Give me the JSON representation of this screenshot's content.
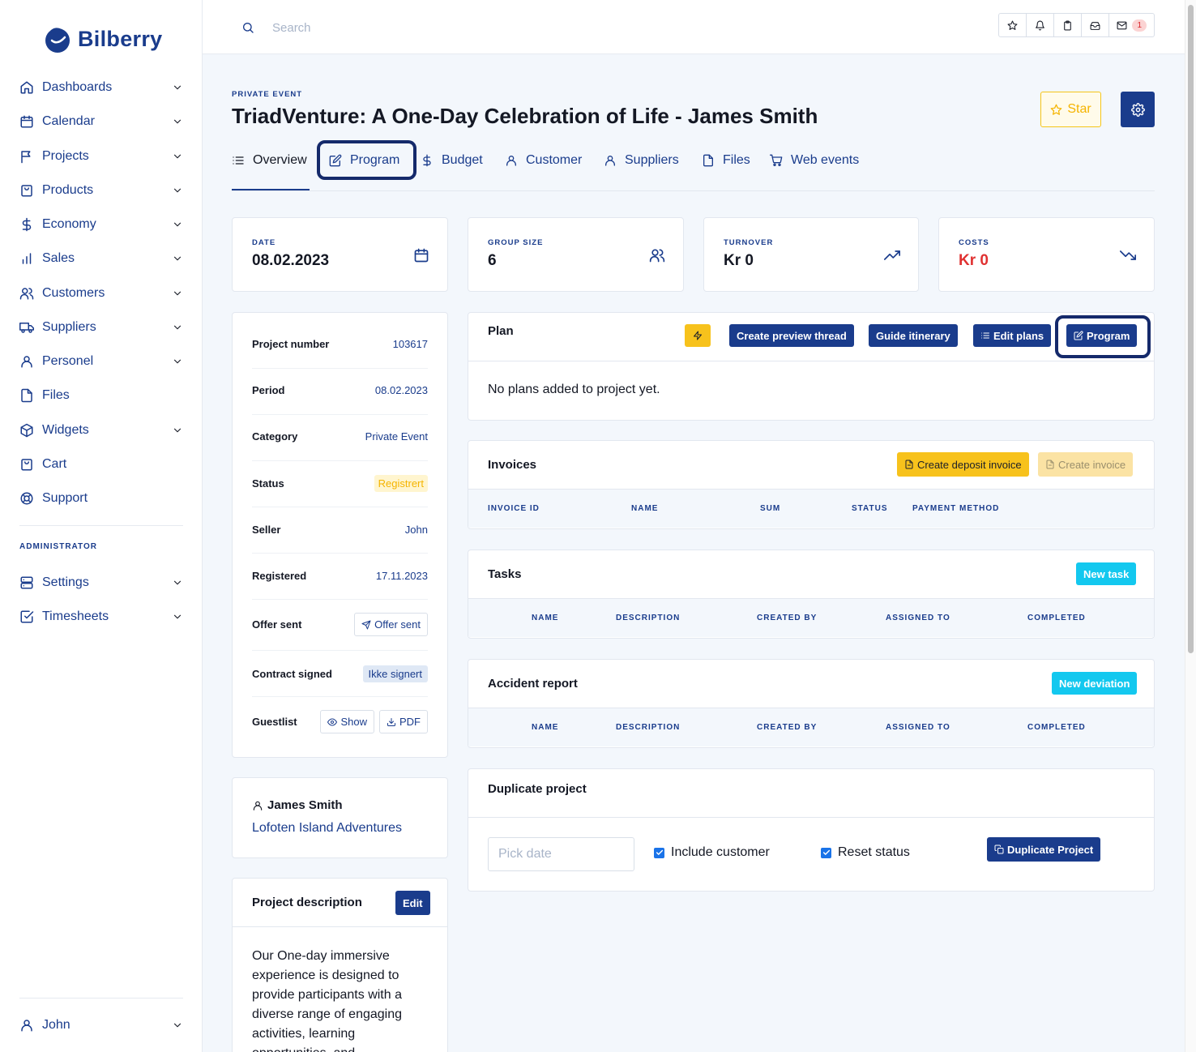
{
  "brand": {
    "name": "Bilberry"
  },
  "sidebar": {
    "items": [
      {
        "label": "Dashboards",
        "icon": "home-icon",
        "expandable": true
      },
      {
        "label": "Calendar",
        "icon": "calendar-icon",
        "expandable": true
      },
      {
        "label": "Projects",
        "icon": "flag-icon",
        "expandable": true
      },
      {
        "label": "Products",
        "icon": "shopping-bag-icon",
        "expandable": true
      },
      {
        "label": "Economy",
        "icon": "dollar-icon",
        "expandable": true
      },
      {
        "label": "Sales",
        "icon": "bar-chart-icon",
        "expandable": true
      },
      {
        "label": "Customers",
        "icon": "users-icon",
        "expandable": true
      },
      {
        "label": "Suppliers",
        "icon": "truck-icon",
        "expandable": true
      },
      {
        "label": "Personel",
        "icon": "user-icon",
        "expandable": true
      },
      {
        "label": "Files",
        "icon": "file-icon",
        "expandable": false
      },
      {
        "label": "Widgets",
        "icon": "box-icon",
        "expandable": true
      },
      {
        "label": "Cart",
        "icon": "cart-bag-icon",
        "expandable": false
      },
      {
        "label": "Support",
        "icon": "lifebuoy-icon",
        "expandable": false
      }
    ],
    "admin_heading": "ADMINISTRATOR",
    "admin_items": [
      {
        "label": "Settings",
        "icon": "server-icon",
        "expandable": true
      },
      {
        "label": "Timesheets",
        "icon": "check-square-icon",
        "expandable": true
      }
    ],
    "user": {
      "label": "John",
      "icon": "user-icon"
    }
  },
  "topbar": {
    "search_placeholder": "Search",
    "mail_count": "1"
  },
  "header": {
    "eyebrow": "PRIVATE EVENT",
    "title": "TriadVenture: A One-Day Celebration of Life - James Smith",
    "star_label": "Star"
  },
  "tabs": [
    {
      "label": "Overview",
      "icon": "list-icon",
      "active": true
    },
    {
      "label": "Program",
      "icon": "edit-icon",
      "active": false
    },
    {
      "label": "Budget",
      "icon": "dollar-icon",
      "active": false
    },
    {
      "label": "Customer",
      "icon": "user-icon",
      "active": false
    },
    {
      "label": "Suppliers",
      "icon": "user-icon",
      "active": false
    },
    {
      "label": "Files",
      "icon": "file-icon",
      "active": false
    },
    {
      "label": "Web events",
      "icon": "cart-icon",
      "active": false
    }
  ],
  "stats": [
    {
      "label": "DATE",
      "value": "08.02.2023",
      "icon": "calendar-icon"
    },
    {
      "label": "GROUP SIZE",
      "value": "6",
      "icon": "users-icon"
    },
    {
      "label": "TURNOVER",
      "value": "Kr 0",
      "icon": "trending-up-icon"
    },
    {
      "label": "COSTS",
      "value": "Kr 0",
      "icon": "trending-down-icon",
      "negative": true
    }
  ],
  "info": {
    "project_number": {
      "key": "Project number",
      "value": "103617"
    },
    "period": {
      "key": "Period",
      "value": "08.02.2023"
    },
    "category": {
      "key": "Category",
      "value": "Private Event"
    },
    "status": {
      "key": "Status",
      "value": "Registrert"
    },
    "seller": {
      "key": "Seller",
      "value": "John"
    },
    "registered": {
      "key": "Registered",
      "value": "17.11.2023"
    },
    "offer_sent": {
      "key": "Offer sent",
      "button": "Offer sent"
    },
    "contract_signed": {
      "key": "Contract signed",
      "value": "Ikke signert"
    },
    "guestlist": {
      "key": "Guestlist",
      "show": "Show",
      "pdf": "PDF"
    }
  },
  "customer": {
    "name": "James Smith",
    "company": "Lofoten Island Adventures"
  },
  "description": {
    "title": "Project description",
    "edit_label": "Edit",
    "text": "Our One-day immersive experience is designed to provide participants with a diverse range of engaging activities, learning opportunities, and"
  },
  "plan": {
    "title": "Plan",
    "buttons": {
      "preview": "Create preview thread",
      "guide": "Guide itinerary",
      "edit": "Edit plans",
      "program": "Program"
    },
    "empty": "No plans added to project yet."
  },
  "invoices": {
    "title": "Invoices",
    "deposit_btn": "Create deposit invoice",
    "create_btn": "Create invoice",
    "columns": [
      "INVOICE ID",
      "NAME",
      "SUM",
      "STATUS",
      "PAYMENT METHOD"
    ]
  },
  "tasks": {
    "title": "Tasks",
    "new_btn": "New task",
    "columns": [
      "NAME",
      "DESCRIPTION",
      "CREATED BY",
      "ASSIGNED TO",
      "COMPLETED"
    ]
  },
  "accident": {
    "title": "Accident report",
    "new_btn": "New deviation",
    "columns": [
      "NAME",
      "DESCRIPTION",
      "CREATED BY",
      "ASSIGNED TO",
      "COMPLETED"
    ]
  },
  "duplicate": {
    "title": "Duplicate project",
    "date_placeholder": "Pick date",
    "include_customer": "Include customer",
    "include_customer_checked": true,
    "reset_status": "Reset status",
    "reset_status_checked": true,
    "button": "Duplicate Project"
  },
  "colors": {
    "brand_navy": "#1a3c8c",
    "accent_yellow": "#f7c21c",
    "accent_cyan": "#13c8ef",
    "negative_red": "#e03131",
    "highlight_ring": "#152a6b"
  }
}
